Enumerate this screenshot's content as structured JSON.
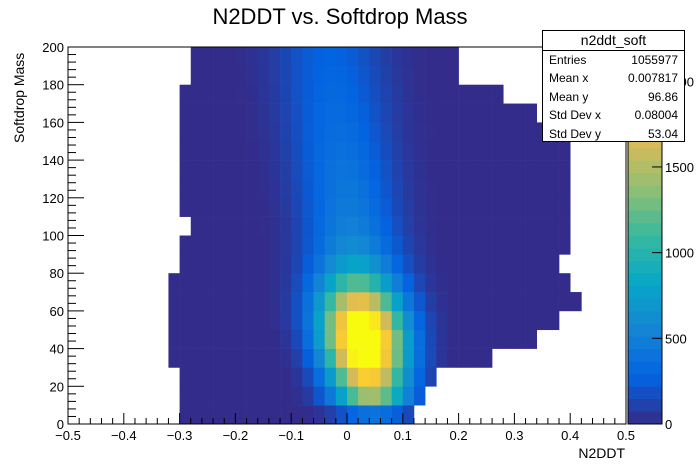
{
  "chart_data": {
    "type": "heatmap",
    "title": "N2DDT vs. Softdrop Mass",
    "xlabel": "N2DDT",
    "ylabel": "Softdrop Mass",
    "xlim": [
      -0.5,
      0.5
    ],
    "ylim": [
      0,
      200
    ],
    "x_tick_labels": [
      "−0.5",
      "−0.4",
      "−0.3",
      "−0.2",
      "−0.1",
      "0",
      "0.1",
      "0.2",
      "0.3",
      "0.4",
      "0.5"
    ],
    "x_ticks": [
      -0.5,
      -0.4,
      -0.3,
      -0.2,
      -0.1,
      0,
      0.1,
      0.2,
      0.3,
      0.4,
      0.5
    ],
    "y_ticks": [
      0,
      20,
      40,
      60,
      80,
      100,
      120,
      140,
      160,
      180,
      200
    ],
    "x_bins": 50,
    "y_bins": 20,
    "colorbar": {
      "range": [
        0,
        2200
      ],
      "tick_values": [
        0,
        500,
        1000,
        1500,
        2000
      ],
      "tick_labels": [
        "0",
        "500",
        "1000",
        "1500",
        "2000"
      ],
      "palette": [
        "#352a87",
        "#0363e1",
        "#1485d4",
        "#06a7c6",
        "#38b99e",
        "#92bf73",
        "#d9ba56",
        "#fcce2e",
        "#f9fb0e"
      ]
    },
    "distribution": {
      "description_values": "approximate counts per bin",
      "peak_x": 0.03,
      "peak_mass": 45,
      "peak_count": 2200
    },
    "x_coverage_by_mass": [
      {
        "mass": 5,
        "xmin": -0.3,
        "xmax": 0.12
      },
      {
        "mass": 25,
        "xmin": -0.3,
        "xmax": 0.17
      },
      {
        "mass": 45,
        "xmin": -0.32,
        "xmax": 0.34
      },
      {
        "mass": 65,
        "xmin": -0.32,
        "xmax": 0.42
      },
      {
        "mass": 85,
        "xmin": -0.3,
        "xmax": 0.38
      },
      {
        "mass": 105,
        "xmin": -0.28,
        "xmax": 0.41
      },
      {
        "mass": 125,
        "xmin": -0.3,
        "xmax": 0.41
      },
      {
        "mass": 145,
        "xmin": -0.3,
        "xmax": 0.41
      },
      {
        "mass": 165,
        "xmin": -0.3,
        "xmax": 0.34
      },
      {
        "mass": 185,
        "xmin": -0.28,
        "xmax": 0.2
      }
    ]
  },
  "stats": {
    "title": "n2ddt_soft",
    "rows": [
      {
        "label": "Entries",
        "value": "1055977"
      },
      {
        "label": "Mean x",
        "value": "0.007817"
      },
      {
        "label": "Mean y",
        "value": "96.86"
      },
      {
        "label": "Std Dev x",
        "value": "0.08004"
      },
      {
        "label": "Std Dev y",
        "value": "53.04"
      }
    ]
  }
}
